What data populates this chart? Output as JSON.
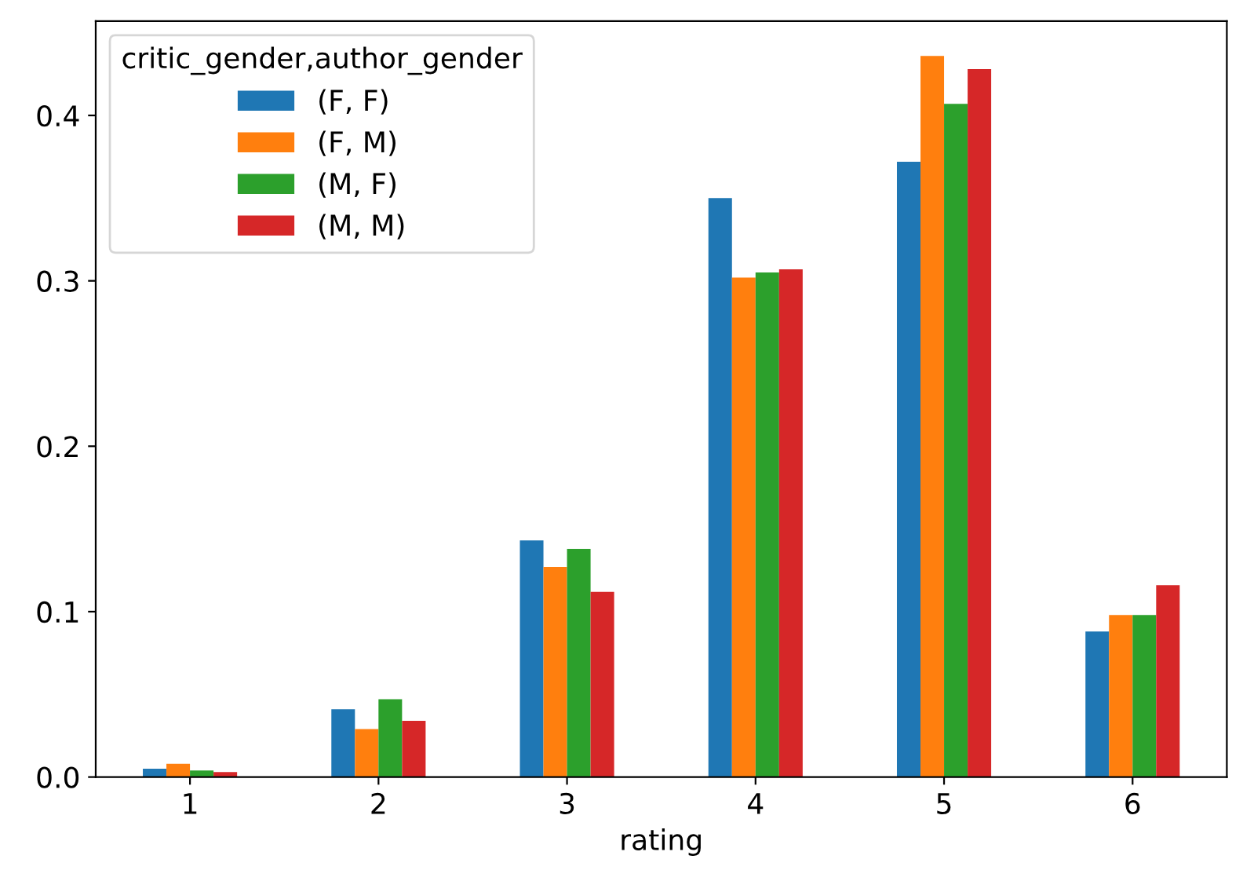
{
  "chart_data": {
    "type": "bar",
    "xlabel": "rating",
    "legend_title": "critic_gender,author_gender",
    "legend": "top left",
    "grid": false,
    "categories": [
      "1",
      "2",
      "3",
      "4",
      "5",
      "6"
    ],
    "ylim": [
      0,
      0.457
    ],
    "yticks": [
      {
        "value": 0,
        "label": "0.0"
      },
      0.1,
      0.2,
      0.3,
      0.4
    ],
    "series": [
      {
        "name": "(F, F)",
        "color": "#1f77b4",
        "values": [
          0.005,
          0.041,
          0.143,
          0.35,
          0.372,
          0.088
        ]
      },
      {
        "name": "(F, M)",
        "color": "#ff7f0e",
        "values": [
          0.008,
          0.029,
          0.127,
          0.302,
          0.436,
          0.098
        ]
      },
      {
        "name": "(M, F)",
        "color": "#2ca02c",
        "values": [
          0.004,
          0.047,
          0.138,
          0.305,
          0.407,
          0.098
        ]
      },
      {
        "name": "(M, M)",
        "color": "#d62728",
        "values": [
          0.003,
          0.034,
          0.112,
          0.307,
          0.428,
          0.116
        ]
      }
    ]
  }
}
